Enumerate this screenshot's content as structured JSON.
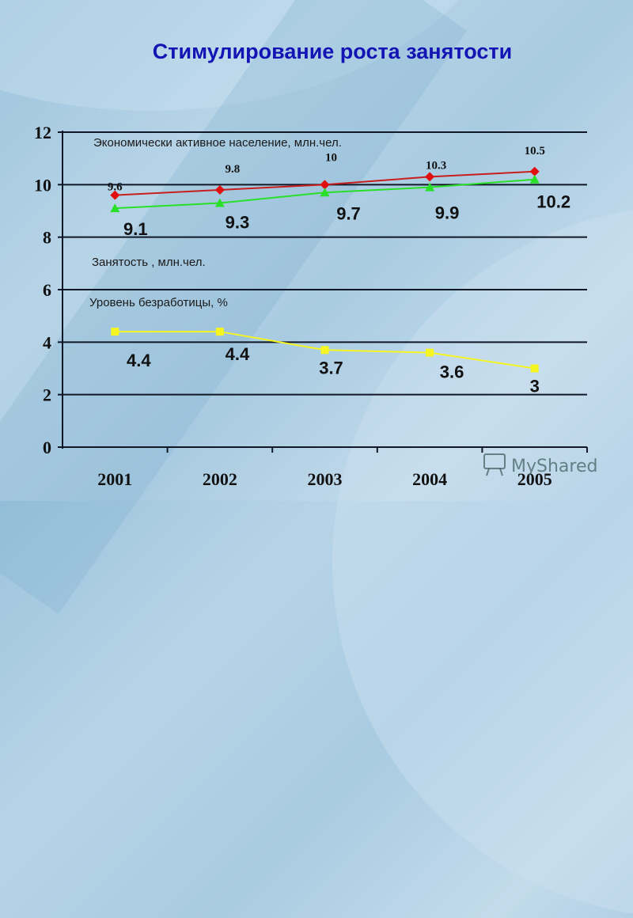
{
  "title": "Стимулирование роста занятости",
  "labels": {
    "active": "Экономически активное население, млн.чел.",
    "employment": "Занятость , млн.чел.",
    "unemployment": "Уровень безработицы, %"
  },
  "watermark": "MyShared",
  "colors": {
    "title": "#1414b4",
    "active": "#e01010",
    "employment": "#28e028",
    "unemployment": "#f5f522",
    "grid": "#101828"
  },
  "chart_data": {
    "type": "line",
    "title": "Стимулирование роста занятости",
    "xlabel": "",
    "ylabel": "",
    "categories": [
      "2001",
      "2002",
      "2003",
      "2004",
      "2005"
    ],
    "ylim": [
      0,
      12
    ],
    "yticks": [
      0,
      2,
      4,
      6,
      8,
      10,
      12
    ],
    "grid": true,
    "series": [
      {
        "name": "Экономически активное население, млн.чел.",
        "marker": "diamond",
        "color": "#e01010",
        "values": [
          9.6,
          9.8,
          10,
          10.3,
          10.5
        ],
        "labels": [
          "9.6",
          "9.8",
          "10",
          "10.3",
          "10.5"
        ]
      },
      {
        "name": "Занятость , млн.чел.",
        "marker": "triangle",
        "color": "#28e028",
        "values": [
          9.1,
          9.3,
          9.7,
          9.9,
          10.2
        ],
        "labels": [
          "9.1",
          "9.3",
          "9.7",
          "9.9",
          "10.2"
        ]
      },
      {
        "name": "Уровень безработицы, %",
        "marker": "square",
        "color": "#f5f522",
        "values": [
          4.4,
          4.4,
          3.7,
          3.6,
          3.0
        ],
        "labels": [
          "4.4",
          "4.4",
          "3.7",
          "3.6",
          "3"
        ]
      }
    ]
  }
}
